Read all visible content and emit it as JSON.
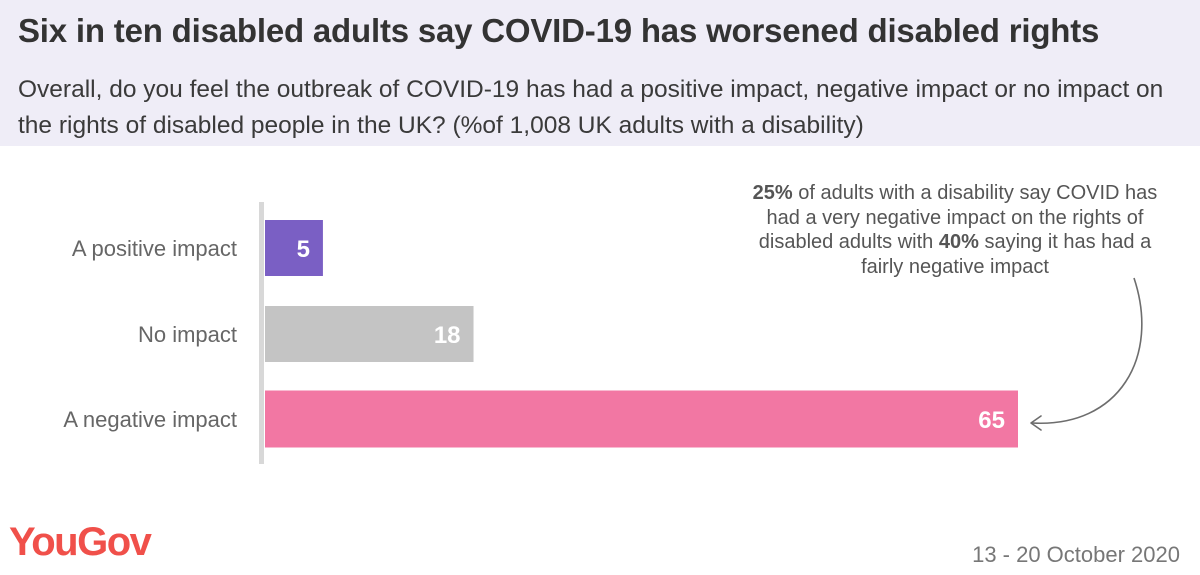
{
  "header": {
    "title": "Six in ten disabled adults say COVID-19 has worsened disabled rights",
    "subtitle": "Overall, do you feel the outbreak of COVID-19 has had a positive impact, negative impact or no impact on the rights of disabled people in the UK? (%of 1,008 UK adults with a disability)"
  },
  "annotation": {
    "p1_bold": "25%",
    "p1_text": " of adults with a disability say COVID has had a very negative impact on the rights of disabled adults with ",
    "p2_bold": "40%",
    "p2_text": " saying it has had a fairly negative impact"
  },
  "footer": {
    "logo": "YouGov",
    "date": "13 - 20 October 2020"
  },
  "colors": {
    "positive": "#7a5fc4",
    "none": "#c4c4c4",
    "negative": "#f277a3",
    "axis": "#d8d8d8"
  },
  "chart_data": {
    "type": "bar",
    "orientation": "horizontal",
    "categories": [
      "A positive impact",
      "No impact",
      "A negative impact"
    ],
    "values": [
      5,
      18,
      65
    ],
    "xlim": [
      0,
      65
    ],
    "grid": false
  }
}
